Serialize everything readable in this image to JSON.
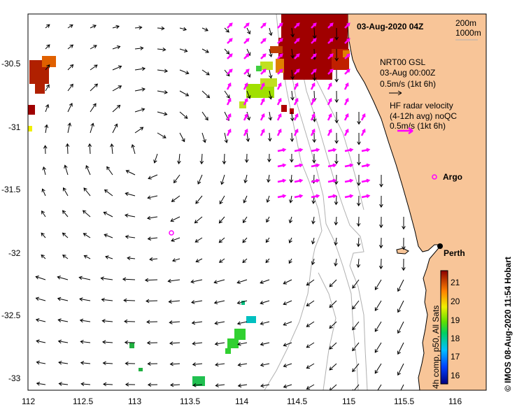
{
  "title": "03-Aug-2020 04Z",
  "depth_contours": [
    "200m",
    "1000m"
  ],
  "legend": {
    "gsl_line1": "NRT00 GSL",
    "gsl_line2": "03-Aug 00:00Z",
    "gsl_scale": "0.5m/s (1kt 6h)",
    "hf_line1": "HF radar velocity",
    "hf_line2": "(4-12h avg) noQC",
    "hf_scale": "0.5m/s (1kt 6h)",
    "argo": "Argo"
  },
  "city": "Perth",
  "x_axis": [
    "112",
    "112.5",
    "113",
    "113.5",
    "114",
    "114.5",
    "115",
    "115.5",
    "116"
  ],
  "y_axis": [
    "-30.5",
    "-31",
    "-31.5",
    "-32",
    "-32.5",
    "-33"
  ],
  "colorbar": {
    "ticks": [
      "21",
      "20",
      "19",
      "18",
      "17",
      "16"
    ],
    "label": "4h comp, p50, All Sats"
  },
  "credit": "© IMOS 08-Aug-2020 11:54 Hobart",
  "colors": {
    "land": "#f8c598",
    "hf": "#ff00ff",
    "contour": "#b0b0b0"
  }
}
